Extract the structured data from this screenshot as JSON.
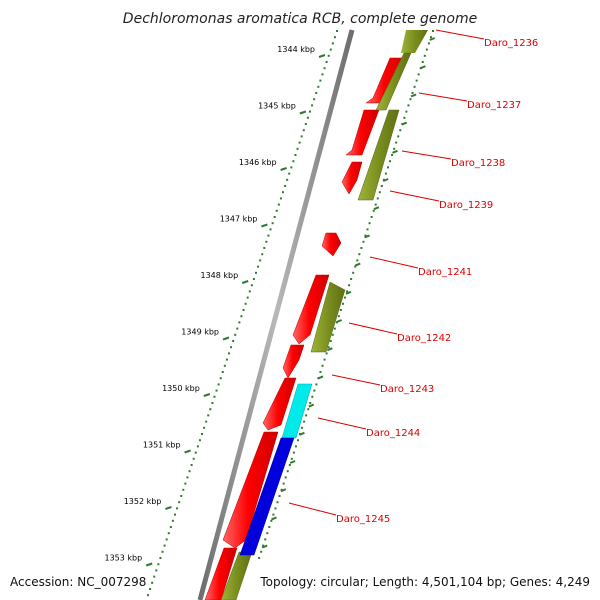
{
  "title": "Dechloromonas aromatica RCB, complete genome",
  "ticks": [
    "1344 kbp",
    "1345 kbp",
    "1346 kbp",
    "1347 kbp",
    "1348 kbp",
    "1349 kbp",
    "1350 kbp",
    "1351 kbp",
    "1352 kbp",
    "1353 kbp"
  ],
  "genes": [
    {
      "name": "Daro_1236",
      "track": "reverse",
      "color": "#7a8f1e"
    },
    {
      "name": "Daro_1237",
      "track": "reverse",
      "color": "#7a8f1e"
    },
    {
      "name": "Daro_1238",
      "track": "forward",
      "color": "#ff0000"
    },
    {
      "name": "Daro_1239",
      "track": "reverse",
      "color": "#7a8f1e"
    },
    {
      "name": "Daro_1241",
      "track": "forward",
      "color": "#ff0000"
    },
    {
      "name": "Daro_1242",
      "track": "reverse",
      "color": "#7a8f1e"
    },
    {
      "name": "Daro_1243",
      "track": "forward",
      "color": "#ff0000"
    },
    {
      "name": "Daro_1244",
      "track": "reverse",
      "color": "#00e5e5"
    },
    {
      "name": "Daro_1245",
      "track": "reverse",
      "color": "#0000dd"
    }
  ],
  "colors": {
    "forward": "#ff0000",
    "reverse": "#7a8f1e",
    "cyan_gene": "#00e5e5",
    "blue_gene": "#0000dd",
    "backbone": "#9a9a9a",
    "tick": "#2f7a2f",
    "label": "#dd0000"
  },
  "footer": {
    "accession": "Accession: NC_007298",
    "topology": "Topology: circular; Length: 4,501,104 bp; Genes: 4,249"
  }
}
